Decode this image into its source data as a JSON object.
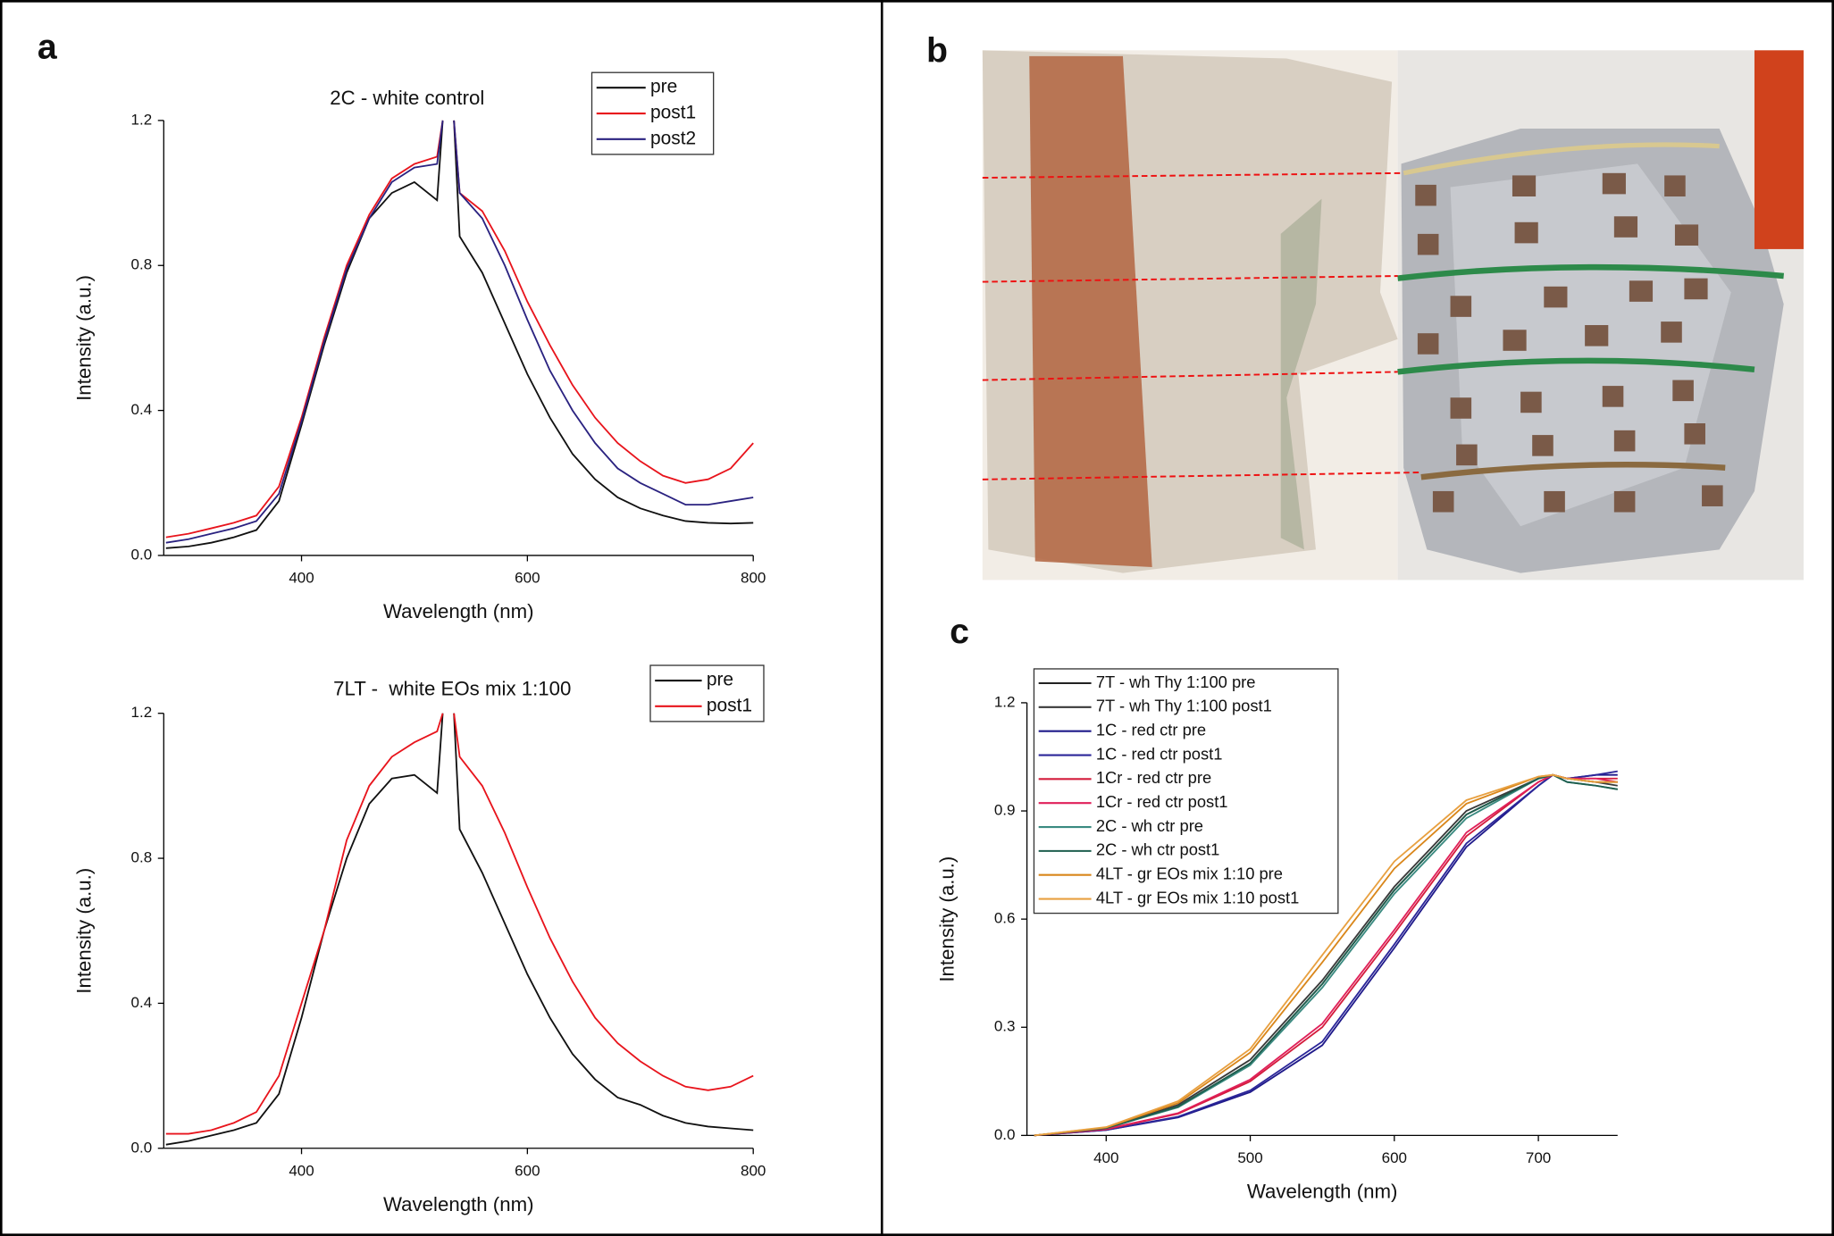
{
  "panels": [
    "a",
    "b",
    "c"
  ],
  "chart_data": [
    {
      "type": "line",
      "title": "2C - white control",
      "x_label": "Wavelength (nm)",
      "y_label": "Intensity (a.u.)",
      "x": [
        280,
        300,
        320,
        340,
        360,
        380,
        400,
        420,
        440,
        460,
        480,
        500,
        520,
        525,
        530,
        535,
        540,
        560,
        580,
        600,
        620,
        640,
        660,
        680,
        700,
        720,
        740,
        760,
        780,
        800
      ],
      "series": [
        {
          "name": "pre",
          "color": "#111111",
          "values": [
            0.02,
            0.025,
            0.035,
            0.05,
            0.07,
            0.15,
            0.36,
            0.58,
            0.78,
            0.93,
            1.0,
            1.03,
            0.98,
            1.2,
            null,
            1.2,
            0.88,
            0.78,
            0.64,
            0.5,
            0.38,
            0.28,
            0.21,
            0.16,
            0.13,
            0.11,
            0.095,
            0.09,
            0.088,
            0.09
          ]
        },
        {
          "name": "post1",
          "color": "#e8141c",
          "values": [
            0.05,
            0.06,
            0.075,
            0.09,
            0.11,
            0.19,
            0.38,
            0.6,
            0.8,
            0.94,
            1.04,
            1.08,
            1.1,
            1.2,
            null,
            1.2,
            1.0,
            0.95,
            0.84,
            0.7,
            0.58,
            0.47,
            0.38,
            0.31,
            0.26,
            0.22,
            0.2,
            0.21,
            0.24,
            0.31
          ]
        },
        {
          "name": "post2",
          "color": "#2a2280",
          "values": [
            0.035,
            0.045,
            0.06,
            0.075,
            0.095,
            0.17,
            0.37,
            0.59,
            0.79,
            0.93,
            1.03,
            1.07,
            1.08,
            1.2,
            null,
            1.2,
            1.0,
            0.93,
            0.8,
            0.65,
            0.51,
            0.4,
            0.31,
            0.24,
            0.2,
            0.17,
            0.14,
            0.14,
            0.15,
            0.16
          ]
        }
      ],
      "xlim": [
        278,
        800
      ],
      "ylim": [
        0,
        1.2
      ],
      "xticks": [
        400,
        600,
        800
      ],
      "yticks": [
        {
          "value": 0,
          "label": "0.0"
        },
        0.4,
        0.8,
        1.2
      ]
    },
    {
      "type": "line",
      "title": "7LT -  white EOs mix 1:100",
      "x_label": "Wavelength (nm)",
      "y_label": "Intensity (a.u.)",
      "x": [
        280,
        300,
        320,
        340,
        360,
        380,
        400,
        420,
        440,
        460,
        480,
        500,
        520,
        525,
        530,
        535,
        540,
        560,
        580,
        600,
        620,
        640,
        660,
        680,
        700,
        720,
        740,
        760,
        780,
        800
      ],
      "series": [
        {
          "name": "pre",
          "color": "#111111",
          "values": [
            0.01,
            0.02,
            0.035,
            0.05,
            0.07,
            0.15,
            0.36,
            0.6,
            0.8,
            0.95,
            1.02,
            1.03,
            0.98,
            1.2,
            null,
            1.2,
            0.88,
            0.76,
            0.62,
            0.48,
            0.36,
            0.26,
            0.19,
            0.14,
            0.12,
            0.09,
            0.07,
            0.06,
            0.055,
            0.05
          ]
        },
        {
          "name": "post1",
          "color": "#e8141c",
          "values": [
            0.04,
            0.04,
            0.05,
            0.07,
            0.1,
            0.2,
            0.4,
            0.6,
            0.85,
            1.0,
            1.08,
            1.12,
            1.15,
            1.2,
            null,
            1.2,
            1.08,
            1.0,
            0.87,
            0.72,
            0.58,
            0.46,
            0.36,
            0.29,
            0.24,
            0.2,
            0.17,
            0.16,
            0.17,
            0.2
          ]
        }
      ],
      "xlim": [
        278,
        800
      ],
      "ylim": [
        0,
        1.2
      ],
      "xticks": [
        400,
        600,
        800
      ],
      "yticks": [
        {
          "value": 0,
          "label": "0.0"
        },
        0.4,
        0.8,
        1.2
      ]
    },
    {
      "type": "line",
      "x_label": "Wavelength (nm)",
      "y_label": "Intensity (a.u.)",
      "x": [
        350,
        400,
        450,
        500,
        550,
        600,
        650,
        700,
        710,
        720,
        740,
        755
      ],
      "series": [
        {
          "name": "7T - wh Thy 1:100 pre",
          "color": "#222222",
          "values": [
            0,
            0.02,
            0.08,
            0.2,
            0.42,
            0.68,
            0.89,
            0.99,
            1.0,
            0.99,
            0.98,
            0.98
          ]
        },
        {
          "name": "7T - wh Thy 1:100 post1",
          "color": "#3a3a3a",
          "values": [
            0,
            0.02,
            0.085,
            0.21,
            0.43,
            0.69,
            0.9,
            0.99,
            1.0,
            0.99,
            0.98,
            0.97
          ]
        },
        {
          "name": "1C - red ctr pre",
          "color": "#1f1a8a",
          "values": [
            0,
            0.015,
            0.05,
            0.12,
            0.25,
            0.52,
            0.8,
            0.97,
            1.0,
            0.99,
            1.0,
            1.0
          ]
        },
        {
          "name": "1C - red ctr post1",
          "color": "#2b2699",
          "values": [
            0,
            0.015,
            0.052,
            0.125,
            0.26,
            0.53,
            0.81,
            0.97,
            1.0,
            0.99,
            1.0,
            1.01
          ]
        },
        {
          "name": "1Cr - red ctr pre",
          "color": "#d41c3c",
          "values": [
            0,
            0.017,
            0.06,
            0.15,
            0.3,
            0.56,
            0.83,
            0.98,
            1.0,
            0.99,
            0.99,
            0.99
          ]
        },
        {
          "name": "1Cr - red ctr post1",
          "color": "#e0205a",
          "values": [
            0,
            0.018,
            0.062,
            0.155,
            0.31,
            0.57,
            0.84,
            0.98,
            1.0,
            0.99,
            0.99,
            0.98
          ]
        },
        {
          "name": "2C - wh ctr pre",
          "color": "#3a8a80",
          "values": [
            0,
            0.02,
            0.078,
            0.195,
            0.41,
            0.67,
            0.88,
            0.99,
            1.0,
            0.98,
            0.97,
            0.96
          ]
        },
        {
          "name": "2C - wh ctr post1",
          "color": "#1e5e4e",
          "values": [
            0,
            0.02,
            0.08,
            0.2,
            0.42,
            0.68,
            0.89,
            0.99,
            1.0,
            0.98,
            0.97,
            0.96
          ]
        },
        {
          "name": "4LT - gr EOs mix 1:10 pre",
          "color": "#d9861a",
          "values": [
            0,
            0.022,
            0.09,
            0.23,
            0.48,
            0.74,
            0.92,
            0.995,
            1.0,
            0.99,
            0.98,
            0.98
          ]
        },
        {
          "name": "4LT - gr EOs mix 1:10 post1",
          "color": "#e8a040",
          "values": [
            0,
            0.023,
            0.095,
            0.24,
            0.5,
            0.76,
            0.93,
            0.995,
            1.0,
            0.99,
            0.98,
            0.98
          ]
        }
      ],
      "xlim": [
        345,
        755
      ],
      "ylim": [
        0,
        1.2
      ],
      "xticks": [
        400,
        500,
        600,
        700
      ],
      "yticks": [
        {
          "value": 0,
          "label": "0.0"
        },
        0.3,
        0.6,
        0.9,
        1.2
      ]
    }
  ]
}
